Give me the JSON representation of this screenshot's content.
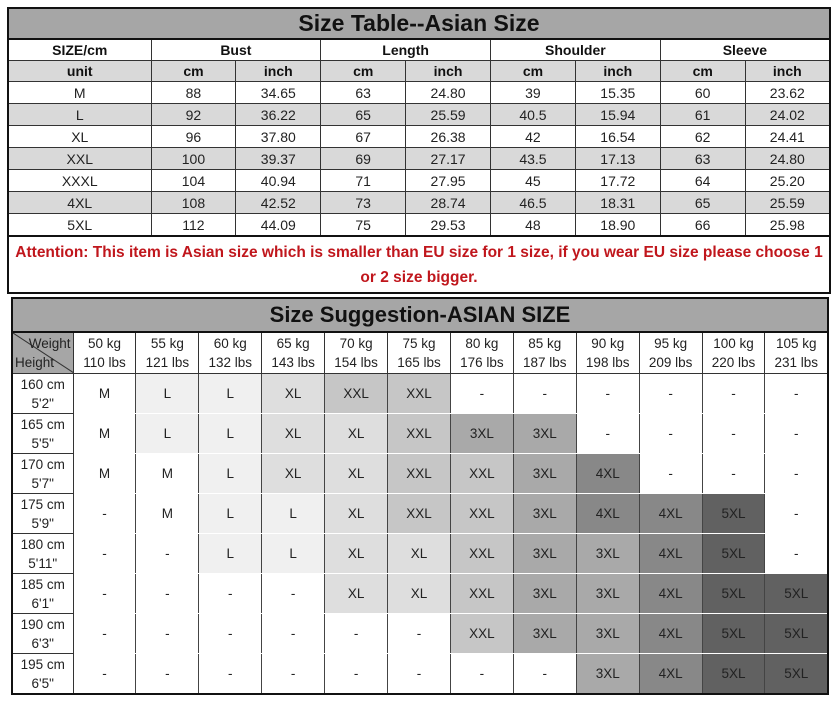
{
  "size_table": {
    "title": "Size Table--Asian Size",
    "header": [
      "SIZE/cm",
      "Bust",
      "Length",
      "Shoulder",
      "Sleeve"
    ],
    "units": [
      "unit",
      "cm",
      "inch",
      "cm",
      "inch",
      "cm",
      "inch",
      "cm",
      "inch"
    ],
    "rows": [
      [
        "M",
        "88",
        "34.65",
        "63",
        "24.80",
        "39",
        "15.35",
        "60",
        "23.62"
      ],
      [
        "L",
        "92",
        "36.22",
        "65",
        "25.59",
        "40.5",
        "15.94",
        "61",
        "24.02"
      ],
      [
        "XL",
        "96",
        "37.80",
        "67",
        "26.38",
        "42",
        "16.54",
        "62",
        "24.41"
      ],
      [
        "XXL",
        "100",
        "39.37",
        "69",
        "27.17",
        "43.5",
        "17.13",
        "63",
        "24.80"
      ],
      [
        "XXXL",
        "104",
        "40.94",
        "71",
        "27.95",
        "45",
        "17.72",
        "64",
        "25.20"
      ],
      [
        "4XL",
        "108",
        "42.52",
        "73",
        "28.74",
        "46.5",
        "18.31",
        "65",
        "25.59"
      ],
      [
        "5XL",
        "112",
        "44.09",
        "75",
        "29.53",
        "48",
        "18.90",
        "66",
        "25.98"
      ]
    ],
    "attention": "Attention:  This item is Asian size which is smaller than EU size for 1 size, if you wear EU size please choose 1 or 2 size bigger.",
    "attention_color": "#c0161c"
  },
  "suggestion_table": {
    "title": "Size Suggestion-ASIAN SIZE",
    "corner_weight": "Weight",
    "corner_height": "Height",
    "weights": [
      {
        "kg": "50 kg",
        "lbs": "110 lbs"
      },
      {
        "kg": "55 kg",
        "lbs": "121 lbs"
      },
      {
        "kg": "60 kg",
        "lbs": "132 lbs"
      },
      {
        "kg": "65 kg",
        "lbs": "143 lbs"
      },
      {
        "kg": "70 kg",
        "lbs": "154 lbs"
      },
      {
        "kg": "75 kg",
        "lbs": "165 lbs"
      },
      {
        "kg": "80 kg",
        "lbs": "176 lbs"
      },
      {
        "kg": "85 kg",
        "lbs": "187 lbs"
      },
      {
        "kg": "90 kg",
        "lbs": "198 lbs"
      },
      {
        "kg": "95 kg",
        "lbs": "209 lbs"
      },
      {
        "kg": "100 kg",
        "lbs": "220 lbs"
      },
      {
        "kg": "105 kg",
        "lbs": "231 lbs"
      }
    ],
    "rows": [
      {
        "cm": "160 cm",
        "ft": "5'2\"",
        "sizes": [
          "M",
          "L",
          "L",
          "XL",
          "XXL",
          "XXL",
          "-",
          "-",
          "-",
          "-",
          "-",
          "-"
        ]
      },
      {
        "cm": "165 cm",
        "ft": "5'5\"",
        "sizes": [
          "M",
          "L",
          "L",
          "XL",
          "XL",
          "XXL",
          "3XL",
          "3XL",
          "-",
          "-",
          "-",
          "-"
        ]
      },
      {
        "cm": "170 cm",
        "ft": "5'7\"",
        "sizes": [
          "M",
          "M",
          "L",
          "XL",
          "XL",
          "XXL",
          "XXL",
          "3XL",
          "4XL",
          "-",
          "-",
          "-"
        ]
      },
      {
        "cm": "175 cm",
        "ft": "5'9\"",
        "sizes": [
          "-",
          "M",
          "L",
          "L",
          "XL",
          "XXL",
          "XXL",
          "3XL",
          "4XL",
          "4XL",
          "5XL",
          "-"
        ]
      },
      {
        "cm": "180 cm",
        "ft": "5'11\"",
        "sizes": [
          "-",
          "-",
          "L",
          "L",
          "XL",
          "XL",
          "XXL",
          "3XL",
          "3XL",
          "4XL",
          "5XL",
          "-"
        ]
      },
      {
        "cm": "185 cm",
        "ft": "6'1\"",
        "sizes": [
          "-",
          "-",
          "-",
          "-",
          "XL",
          "XL",
          "XXL",
          "3XL",
          "3XL",
          "4XL",
          "5XL",
          "5XL"
        ]
      },
      {
        "cm": "190 cm",
        "ft": "6'3\"",
        "sizes": [
          "-",
          "-",
          "-",
          "-",
          "-",
          "-",
          "XXL",
          "3XL",
          "3XL",
          "4XL",
          "5XL",
          "5XL"
        ]
      },
      {
        "cm": "195 cm",
        "ft": "6'5\"",
        "sizes": [
          "-",
          "-",
          "-",
          "-",
          "-",
          "-",
          "-",
          "-",
          "3XL",
          "4XL",
          "5XL",
          "5XL"
        ]
      }
    ],
    "shade_colors": {
      "M": "#ffffff",
      "L": "#f0f0f0",
      "XL": "#dedede",
      "XXL": "#c6c6c6",
      "3XL": "#a9a9a9",
      "4XL": "#888888",
      "5XL": "#616161",
      "-": "#ffffff"
    }
  }
}
